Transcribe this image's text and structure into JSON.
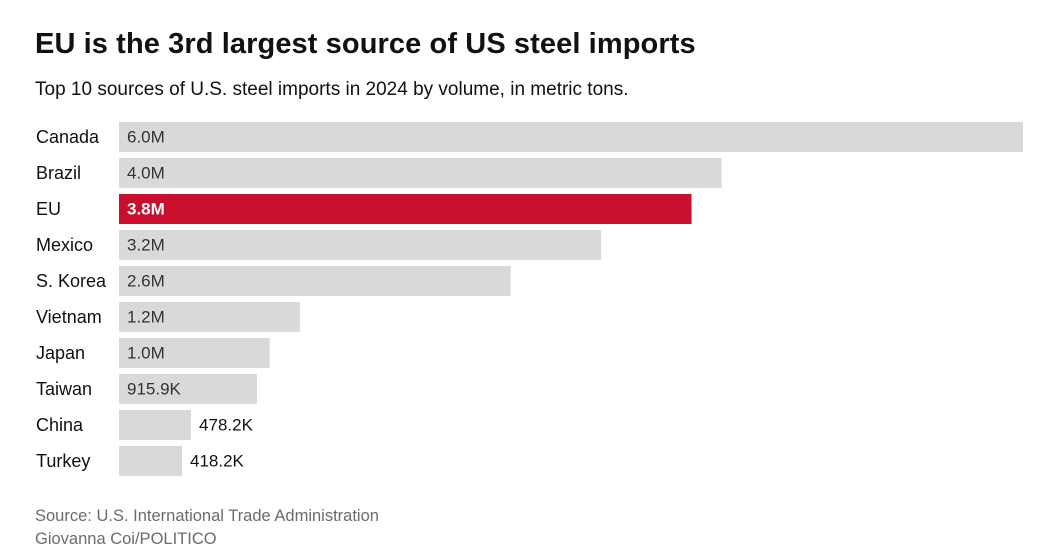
{
  "header": {
    "title": "EU is the 3rd largest source of US steel imports",
    "subtitle": "Top 10 sources of U.S. steel imports in 2024 by volume, in metric tons."
  },
  "footer": {
    "source": "Source: U.S. International Trade Administration",
    "credit": "Giovanna Coi/POLITICO"
  },
  "colors": {
    "bar_default": "#d9d9d9",
    "bar_highlight": "#c8102e",
    "label_default": "#333333",
    "label_highlight": "#ffffff"
  },
  "chart_data": {
    "type": "bar",
    "orientation": "horizontal",
    "title": "EU is the 3rd largest source of US steel imports",
    "subtitle": "Top 10 sources of U.S. steel imports in 2024 by volume, in metric tons.",
    "xlabel": "",
    "ylabel": "",
    "unit": "metric tons",
    "xlim": [
      0,
      6000000
    ],
    "grid": false,
    "categories": [
      "Canada",
      "Brazil",
      "EU",
      "Mexico",
      "S. Korea",
      "Vietnam",
      "Japan",
      "Taiwan",
      "China",
      "Turkey"
    ],
    "values": [
      6000000,
      4000000,
      3800000,
      3200000,
      2600000,
      1200000,
      1000000,
      915900,
      478200,
      418200
    ],
    "value_labels": [
      "6.0M",
      "4.0M",
      "3.8M",
      "3.2M",
      "2.6M",
      "1.2M",
      "1.0M",
      "915.9K",
      "478.2K",
      "418.2K"
    ],
    "highlight": "EU"
  }
}
